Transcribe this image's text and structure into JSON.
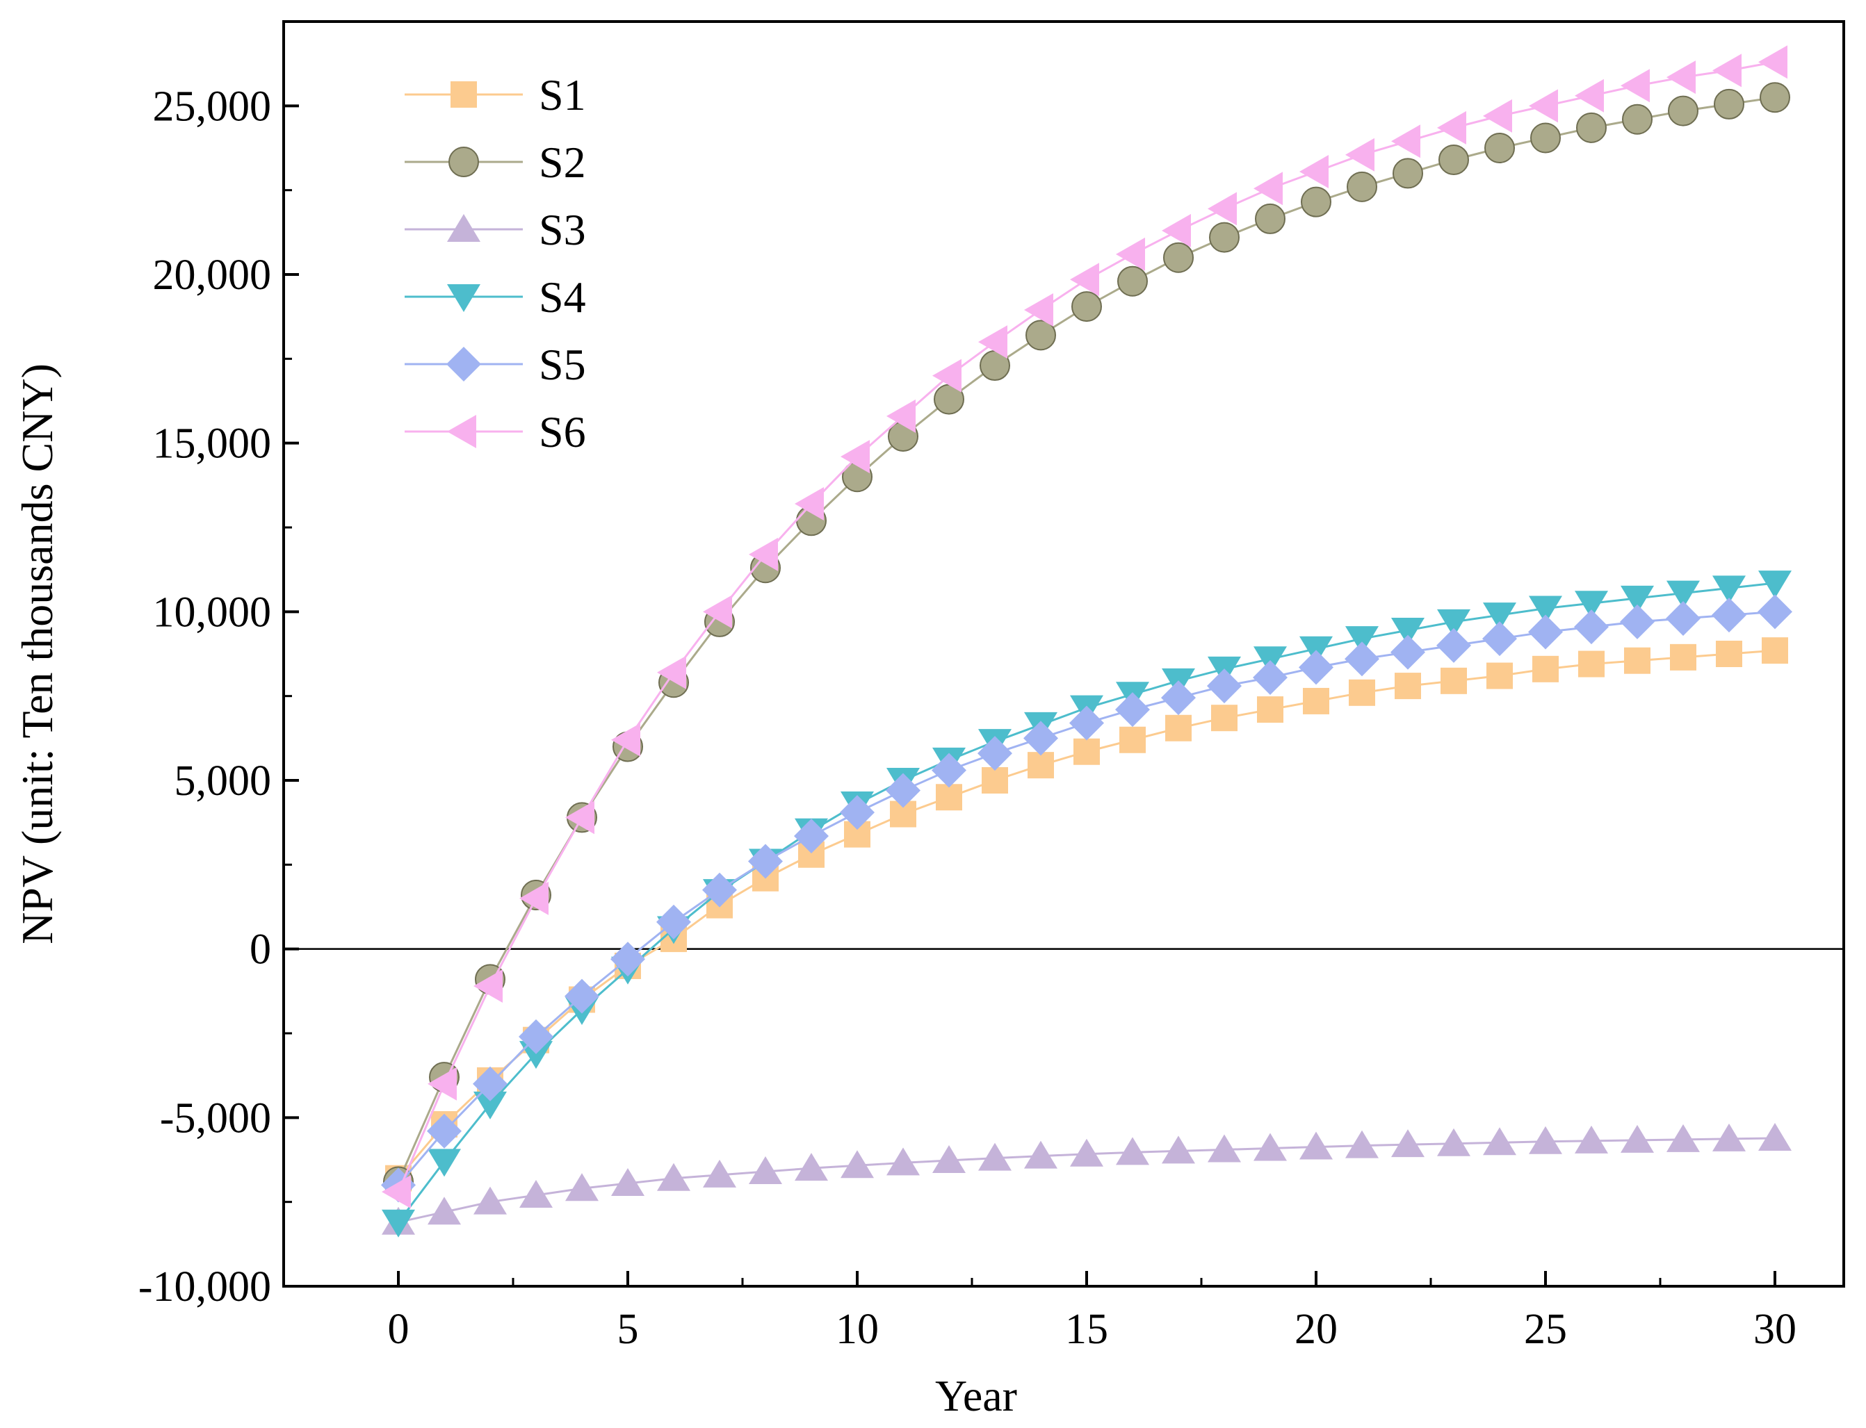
{
  "chart_data": {
    "type": "line",
    "title": "",
    "xlabel": "Year",
    "ylabel": "NPV (unit: Ten thousands CNY)",
    "xlim": [
      -2.5,
      31.5
    ],
    "ylim": [
      -10000,
      27500
    ],
    "xticks": [
      0,
      5,
      10,
      15,
      20,
      25,
      30
    ],
    "xtick_labels": [
      "0",
      "5",
      "10",
      "15",
      "20",
      "25",
      "30"
    ],
    "yticks": [
      -10000,
      -5000,
      0,
      5000,
      10000,
      15000,
      20000,
      25000
    ],
    "ytick_labels": [
      "-10,000",
      "-5,000",
      "0",
      "5,000",
      "10,000",
      "15,000",
      "20,000",
      "25,000"
    ],
    "reference_line": 0,
    "legend_position": "top-left",
    "x": [
      0,
      1,
      2,
      3,
      4,
      5,
      6,
      7,
      8,
      9,
      10,
      11,
      12,
      13,
      14,
      15,
      16,
      17,
      18,
      19,
      20,
      21,
      22,
      23,
      24,
      25,
      26,
      27,
      28,
      29,
      30
    ],
    "series": [
      {
        "name": "S1",
        "marker": "square",
        "color": "#FCCB8F",
        "values": [
          -6800,
          -5200,
          -3900,
          -2700,
          -1500,
          -500,
          300,
          1300,
          2100,
          2800,
          3400,
          4000,
          4500,
          5000,
          5450,
          5850,
          6200,
          6550,
          6850,
          7100,
          7350,
          7600,
          7800,
          7950,
          8100,
          8300,
          8450,
          8550,
          8650,
          8750,
          8850
        ]
      },
      {
        "name": "S2",
        "marker": "circle",
        "color": "#ABAA8B",
        "values": [
          -6900,
          -3800,
          -900,
          1600,
          3900,
          6000,
          7900,
          9700,
          11300,
          12700,
          14000,
          15200,
          16300,
          17300,
          18200,
          19050,
          19800,
          20500,
          21100,
          21650,
          22150,
          22600,
          23000,
          23400,
          23750,
          24050,
          24350,
          24600,
          24850,
          25050,
          25250
        ]
      },
      {
        "name": "S3",
        "marker": "triangle-up",
        "color": "#C5B3D9",
        "values": [
          -8100,
          -7800,
          -7500,
          -7300,
          -7100,
          -6950,
          -6800,
          -6700,
          -6600,
          -6500,
          -6420,
          -6340,
          -6270,
          -6200,
          -6140,
          -6080,
          -6030,
          -5990,
          -5950,
          -5910,
          -5870,
          -5830,
          -5800,
          -5770,
          -5740,
          -5710,
          -5690,
          -5670,
          -5650,
          -5630,
          -5610
        ]
      },
      {
        "name": "S4",
        "marker": "triangle-down",
        "color": "#4DBDCC",
        "values": [
          -8100,
          -6300,
          -4600,
          -3100,
          -1800,
          -600,
          600,
          1700,
          2600,
          3500,
          4300,
          5000,
          5600,
          6150,
          6650,
          7150,
          7550,
          7950,
          8300,
          8600,
          8900,
          9200,
          9450,
          9700,
          9900,
          10100,
          10250,
          10400,
          10550,
          10700,
          10850
        ]
      },
      {
        "name": "S5",
        "marker": "diamond",
        "color": "#A0B3F2",
        "values": [
          -7000,
          -5400,
          -4000,
          -2600,
          -1400,
          -300,
          800,
          1750,
          2600,
          3350,
          4050,
          4700,
          5300,
          5800,
          6250,
          6700,
          7100,
          7450,
          7800,
          8050,
          8350,
          8600,
          8800,
          9000,
          9200,
          9400,
          9550,
          9700,
          9800,
          9900,
          10000
        ]
      },
      {
        "name": "S6",
        "marker": "triangle-left",
        "color": "#F8B1EE",
        "values": [
          -7200,
          -4000,
          -1100,
          1500,
          3900,
          6200,
          8200,
          10000,
          11700,
          13200,
          14600,
          15800,
          17000,
          18000,
          18950,
          19850,
          20600,
          21300,
          21950,
          22550,
          23050,
          23550,
          23950,
          24350,
          24700,
          25000,
          25300,
          25600,
          25850,
          26050,
          26300
        ]
      }
    ]
  }
}
